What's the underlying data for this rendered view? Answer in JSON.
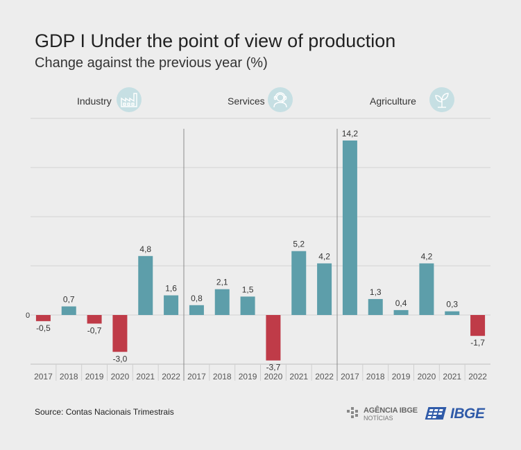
{
  "title": "GDP I Under the point of view of production",
  "subtitle": "Change against the previous year (%)",
  "source": "Source: Contas Nacionais Trimestrais",
  "logos": {
    "agencia_a": "AGÊNCIA IBGE",
    "agencia_b": "NOTÍCIAS",
    "ibge": "IBGE"
  },
  "icons": [
    "factory-icon",
    "headset-agent-icon",
    "plant-icon"
  ],
  "colors": {
    "positive": "#5d9eaa",
    "negative": "#bf3b48",
    "grid": "#d3d3d3",
    "icon_bg": "#c6dfe3"
  },
  "chart_data": [
    {
      "type": "bar",
      "panel": "Industry",
      "categories": [
        "2017",
        "2018",
        "2019",
        "2020",
        "2021",
        "2022"
      ],
      "values": [
        -0.5,
        0.7,
        -0.7,
        -3.0,
        4.8,
        1.6
      ],
      "value_labels": [
        "-0,5",
        "0,7",
        "-0,7",
        "-3,0",
        "4,8",
        "1,6"
      ],
      "ylim": [
        -4,
        16
      ],
      "zero_label": "0",
      "grid": true
    },
    {
      "type": "bar",
      "panel": "Services",
      "categories": [
        "2017",
        "2018",
        "2019",
        "2020",
        "2021",
        "2022"
      ],
      "values": [
        0.8,
        2.1,
        1.5,
        -3.7,
        5.2,
        4.2
      ],
      "value_labels": [
        "0,8",
        "2,1",
        "1,5",
        "-3,7",
        "5,2",
        "4,2"
      ],
      "ylim": [
        -4,
        16
      ],
      "grid": true
    },
    {
      "type": "bar",
      "panel": "Agriculture",
      "categories": [
        "2017",
        "2018",
        "2019",
        "2020",
        "2021",
        "2022"
      ],
      "values": [
        14.2,
        1.3,
        0.4,
        4.2,
        0.3,
        -1.7
      ],
      "value_labels": [
        "14,2",
        "1,3",
        "0,4",
        "4,2",
        "0,3",
        "-1,7"
      ],
      "ylim": [
        -4,
        16
      ],
      "grid": true
    }
  ]
}
